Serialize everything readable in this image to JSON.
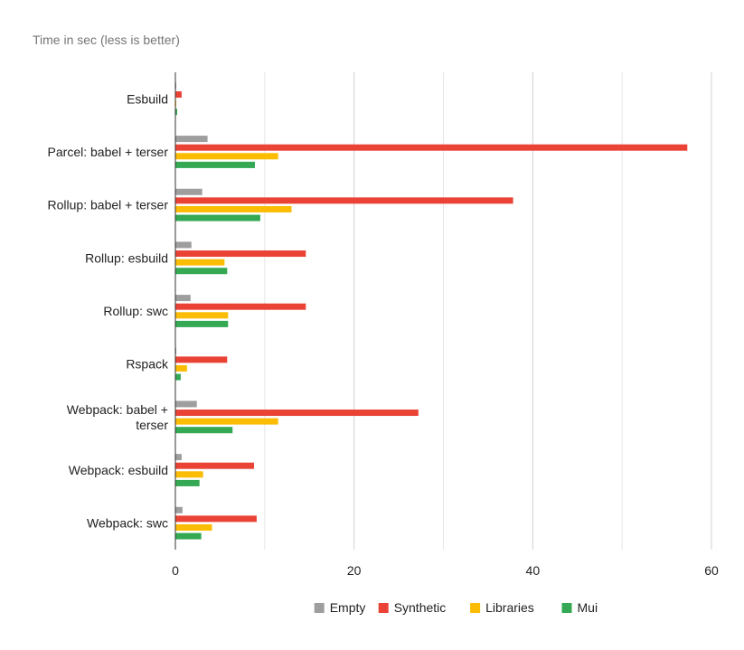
{
  "chart_data": {
    "type": "bar",
    "orientation": "horizontal",
    "title": "Time in sec (less is better)",
    "categories": [
      "Esbuild",
      "Parcel: babel + terser",
      "Rollup: babel + terser",
      "Rollup: esbuild",
      "Rollup: swc",
      "Rspack",
      "Webpack: babel + terser",
      "Webpack: esbuild",
      "Webpack: swc"
    ],
    "series": [
      {
        "name": "Empty",
        "color": "#9e9e9e",
        "values": [
          0.05,
          3.6,
          3.0,
          1.8,
          1.7,
          0.1,
          2.4,
          0.7,
          0.8
        ]
      },
      {
        "name": "Synthetic",
        "color": "#ea4335",
        "values": [
          0.7,
          57.3,
          37.8,
          14.6,
          14.6,
          5.8,
          27.2,
          8.8,
          9.1
        ]
      },
      {
        "name": "Libraries",
        "color": "#fbbc04",
        "values": [
          0.1,
          11.5,
          13.0,
          5.5,
          5.9,
          1.3,
          11.5,
          3.1,
          4.1
        ]
      },
      {
        "name": "Mui",
        "color": "#34a853",
        "values": [
          0.2,
          8.9,
          9.5,
          5.8,
          5.9,
          0.6,
          6.4,
          2.7,
          2.9
        ]
      }
    ],
    "xlim": [
      0,
      60
    ],
    "xticks": [
      0,
      20,
      40,
      60
    ],
    "grid": true,
    "legend": "bottom"
  }
}
